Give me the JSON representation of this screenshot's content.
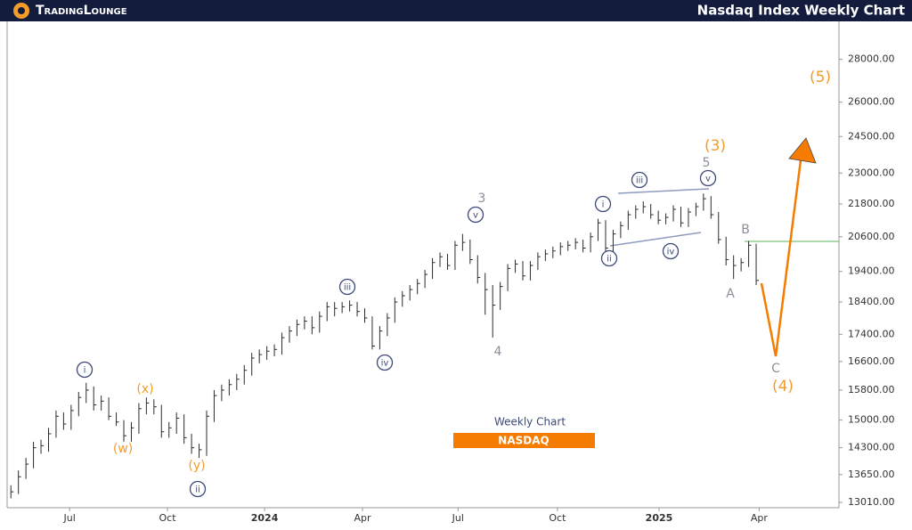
{
  "header": {
    "logo": "TradingLounge",
    "title": "Nasdaq Index Weekly Chart"
  },
  "chart_data": {
    "type": "ohlc",
    "log_scale": true,
    "bar_color": "#2b2b2b",
    "subtitle": "Weekly Chart",
    "symbol": "NASDAQ",
    "high": [
      13400,
      13750,
      14050,
      14450,
      14500,
      14800,
      15250,
      15200,
      15400,
      15750,
      16000,
      15900,
      15650,
      15600,
      15200,
      15000,
      14950,
      15450,
      15600,
      15550,
      15400,
      14950,
      15200,
      15150,
      14650,
      14400,
      15250,
      15800,
      15950,
      16100,
      16250,
      16500,
      16850,
      16950,
      17050,
      17100,
      17450,
      17650,
      17850,
      17950,
      17950,
      18100,
      18400,
      18400,
      18400,
      18450,
      18400,
      18200,
      17950,
      17650,
      18050,
      18550,
      18750,
      18950,
      19150,
      19450,
      19850,
      20050,
      20000,
      20450,
      20700,
      20500,
      19950,
      19350,
      18950,
      19050,
      19650,
      19800,
      19750,
      19750,
      20050,
      20150,
      20250,
      20400,
      20450,
      20550,
      20500,
      20750,
      21250,
      21200,
      20850,
      21150,
      21550,
      21750,
      21900,
      21800,
      21550,
      21450,
      21750,
      21700,
      21650,
      21850,
      22200,
      22100,
      21500,
      20600,
      19950,
      19850,
      20450,
      20350
    ],
    "low": [
      13100,
      13200,
      13550,
      13800,
      14150,
      14200,
      14550,
      14750,
      14750,
      15100,
      15450,
      15250,
      15250,
      15000,
      14850,
      14450,
      14450,
      14650,
      15150,
      15150,
      14550,
      14550,
      14650,
      14400,
      14150,
      14050,
      14100,
      14950,
      15500,
      15650,
      15800,
      15950,
      16200,
      16550,
      16650,
      16750,
      16800,
      17150,
      17350,
      17550,
      17400,
      17450,
      17800,
      17950,
      18050,
      18100,
      17950,
      17750,
      16950,
      16950,
      17350,
      17750,
      18250,
      18450,
      18650,
      18850,
      19150,
      19550,
      19450,
      19450,
      20100,
      19650,
      19000,
      18000,
      17300,
      18150,
      18750,
      19350,
      19100,
      19100,
      19450,
      19750,
      19850,
      19950,
      20100,
      20150,
      20050,
      20050,
      20450,
      20050,
      20050,
      20550,
      20850,
      21250,
      21450,
      21250,
      21050,
      21050,
      21150,
      20950,
      20950,
      21350,
      21550,
      21250,
      20350,
      19600,
      19150,
      19400,
      19550,
      18950
    ],
    "close": [
      13250,
      13600,
      13900,
      14300,
      14350,
      14650,
      15100,
      14900,
      15250,
      15600,
      15800,
      15400,
      15500,
      15100,
      14950,
      14600,
      14800,
      15300,
      15450,
      15350,
      14700,
      14800,
      15050,
      14550,
      14300,
      14250,
      15100,
      15650,
      15800,
      15950,
      16100,
      16350,
      16700,
      16800,
      16900,
      16950,
      17300,
      17500,
      17700,
      17800,
      17600,
      17950,
      18250,
      18200,
      18250,
      18300,
      18100,
      17900,
      17050,
      17500,
      17900,
      18400,
      18600,
      18800,
      19000,
      19300,
      19700,
      19900,
      19600,
      20300,
      20400,
      19800,
      19200,
      18800,
      18300,
      18900,
      19500,
      19650,
      19250,
      19600,
      19900,
      20000,
      20100,
      20250,
      20300,
      20400,
      20200,
      20600,
      21100,
      20200,
      20700,
      21000,
      21400,
      21600,
      21700,
      21400,
      21200,
      21300,
      21600,
      21100,
      21500,
      21700,
      22000,
      21400,
      20500,
      19800,
      19600,
      19700,
      20300,
      19100
    ],
    "xlim": [
      -0.5,
      110
    ],
    "xticks": [
      {
        "value": 7.8,
        "label": "Jul"
      },
      {
        "value": 20.8,
        "label": "Oct"
      },
      {
        "value": 33.7,
        "label": "2024"
      },
      {
        "value": 46.7,
        "label": "Apr"
      },
      {
        "value": 59.4,
        "label": "Jul"
      },
      {
        "value": 72.6,
        "label": "Oct"
      },
      {
        "value": 86.1,
        "label": "2025"
      },
      {
        "value": 99.4,
        "label": "Apr"
      }
    ],
    "ylim": [
      12890,
      29900
    ],
    "yticks": [
      {
        "value": 13010,
        "label": "13010.00"
      },
      {
        "value": 13650,
        "label": "13650.00"
      },
      {
        "value": 14300,
        "label": "14300.00"
      },
      {
        "value": 15000,
        "label": "15000.00"
      },
      {
        "value": 15800,
        "label": "15800.00"
      },
      {
        "value": 16600,
        "label": "16600.00"
      },
      {
        "value": 17400,
        "label": "17400.00"
      },
      {
        "value": 18400,
        "label": "18400.00"
      },
      {
        "value": 19400,
        "label": "19400.00"
      },
      {
        "value": 20600,
        "label": "20600.00"
      },
      {
        "value": 21800,
        "label": "21800.00"
      },
      {
        "value": 23000,
        "label": "23000.00"
      },
      {
        "value": 24500,
        "label": "24500.00"
      },
      {
        "value": 26000,
        "label": "26000.00"
      },
      {
        "value": 28000,
        "label": "28000.00"
      }
    ],
    "annotations": [
      {
        "text": "i",
        "color": "#3d4a7a",
        "circled": true
      },
      {
        "text": "(w)",
        "color": "#f39c2a",
        "circled": false
      },
      {
        "text": "(x)",
        "color": "#f39c2a",
        "circled": false
      },
      {
        "text": "(y)",
        "color": "#f39c2a",
        "circled": false
      },
      {
        "text": "ii",
        "color": "#3d4a7a",
        "circled": true
      },
      {
        "text": "iii",
        "color": "#3d4a7a",
        "circled": true
      },
      {
        "text": "iv",
        "color": "#3d4a7a",
        "circled": true
      },
      {
        "text": "v",
        "color": "#3d4a7a",
        "circled": true
      },
      {
        "text": "3",
        "color": "#8a8f98",
        "circled": false
      },
      {
        "text": "4",
        "color": "#8a8f98",
        "circled": false
      },
      {
        "text": "i",
        "color": "#3d4a7a",
        "circled": true
      },
      {
        "text": "ii",
        "color": "#3d4a7a",
        "circled": true
      },
      {
        "text": "iii",
        "color": "#3d4a7a",
        "circled": true
      },
      {
        "text": "iv",
        "color": "#3d4a7a",
        "circled": true
      },
      {
        "text": "v",
        "color": "#3d4a7a",
        "circled": true
      },
      {
        "text": "5",
        "color": "#8a8f98",
        "circled": false
      },
      {
        "text": "(3)",
        "color": "#f39c2a",
        "circled": false
      },
      {
        "text": "B",
        "color": "#8a8f98",
        "circled": false
      },
      {
        "text": "A",
        "color": "#8a8f98",
        "circled": false
      },
      {
        "text": "C",
        "color": "#8a8f98",
        "circled": false
      },
      {
        "text": "(4)",
        "color": "#f39c2a",
        "circled": false
      },
      {
        "text": "(5)",
        "color": "#f39c2a",
        "circled": false
      }
    ]
  }
}
